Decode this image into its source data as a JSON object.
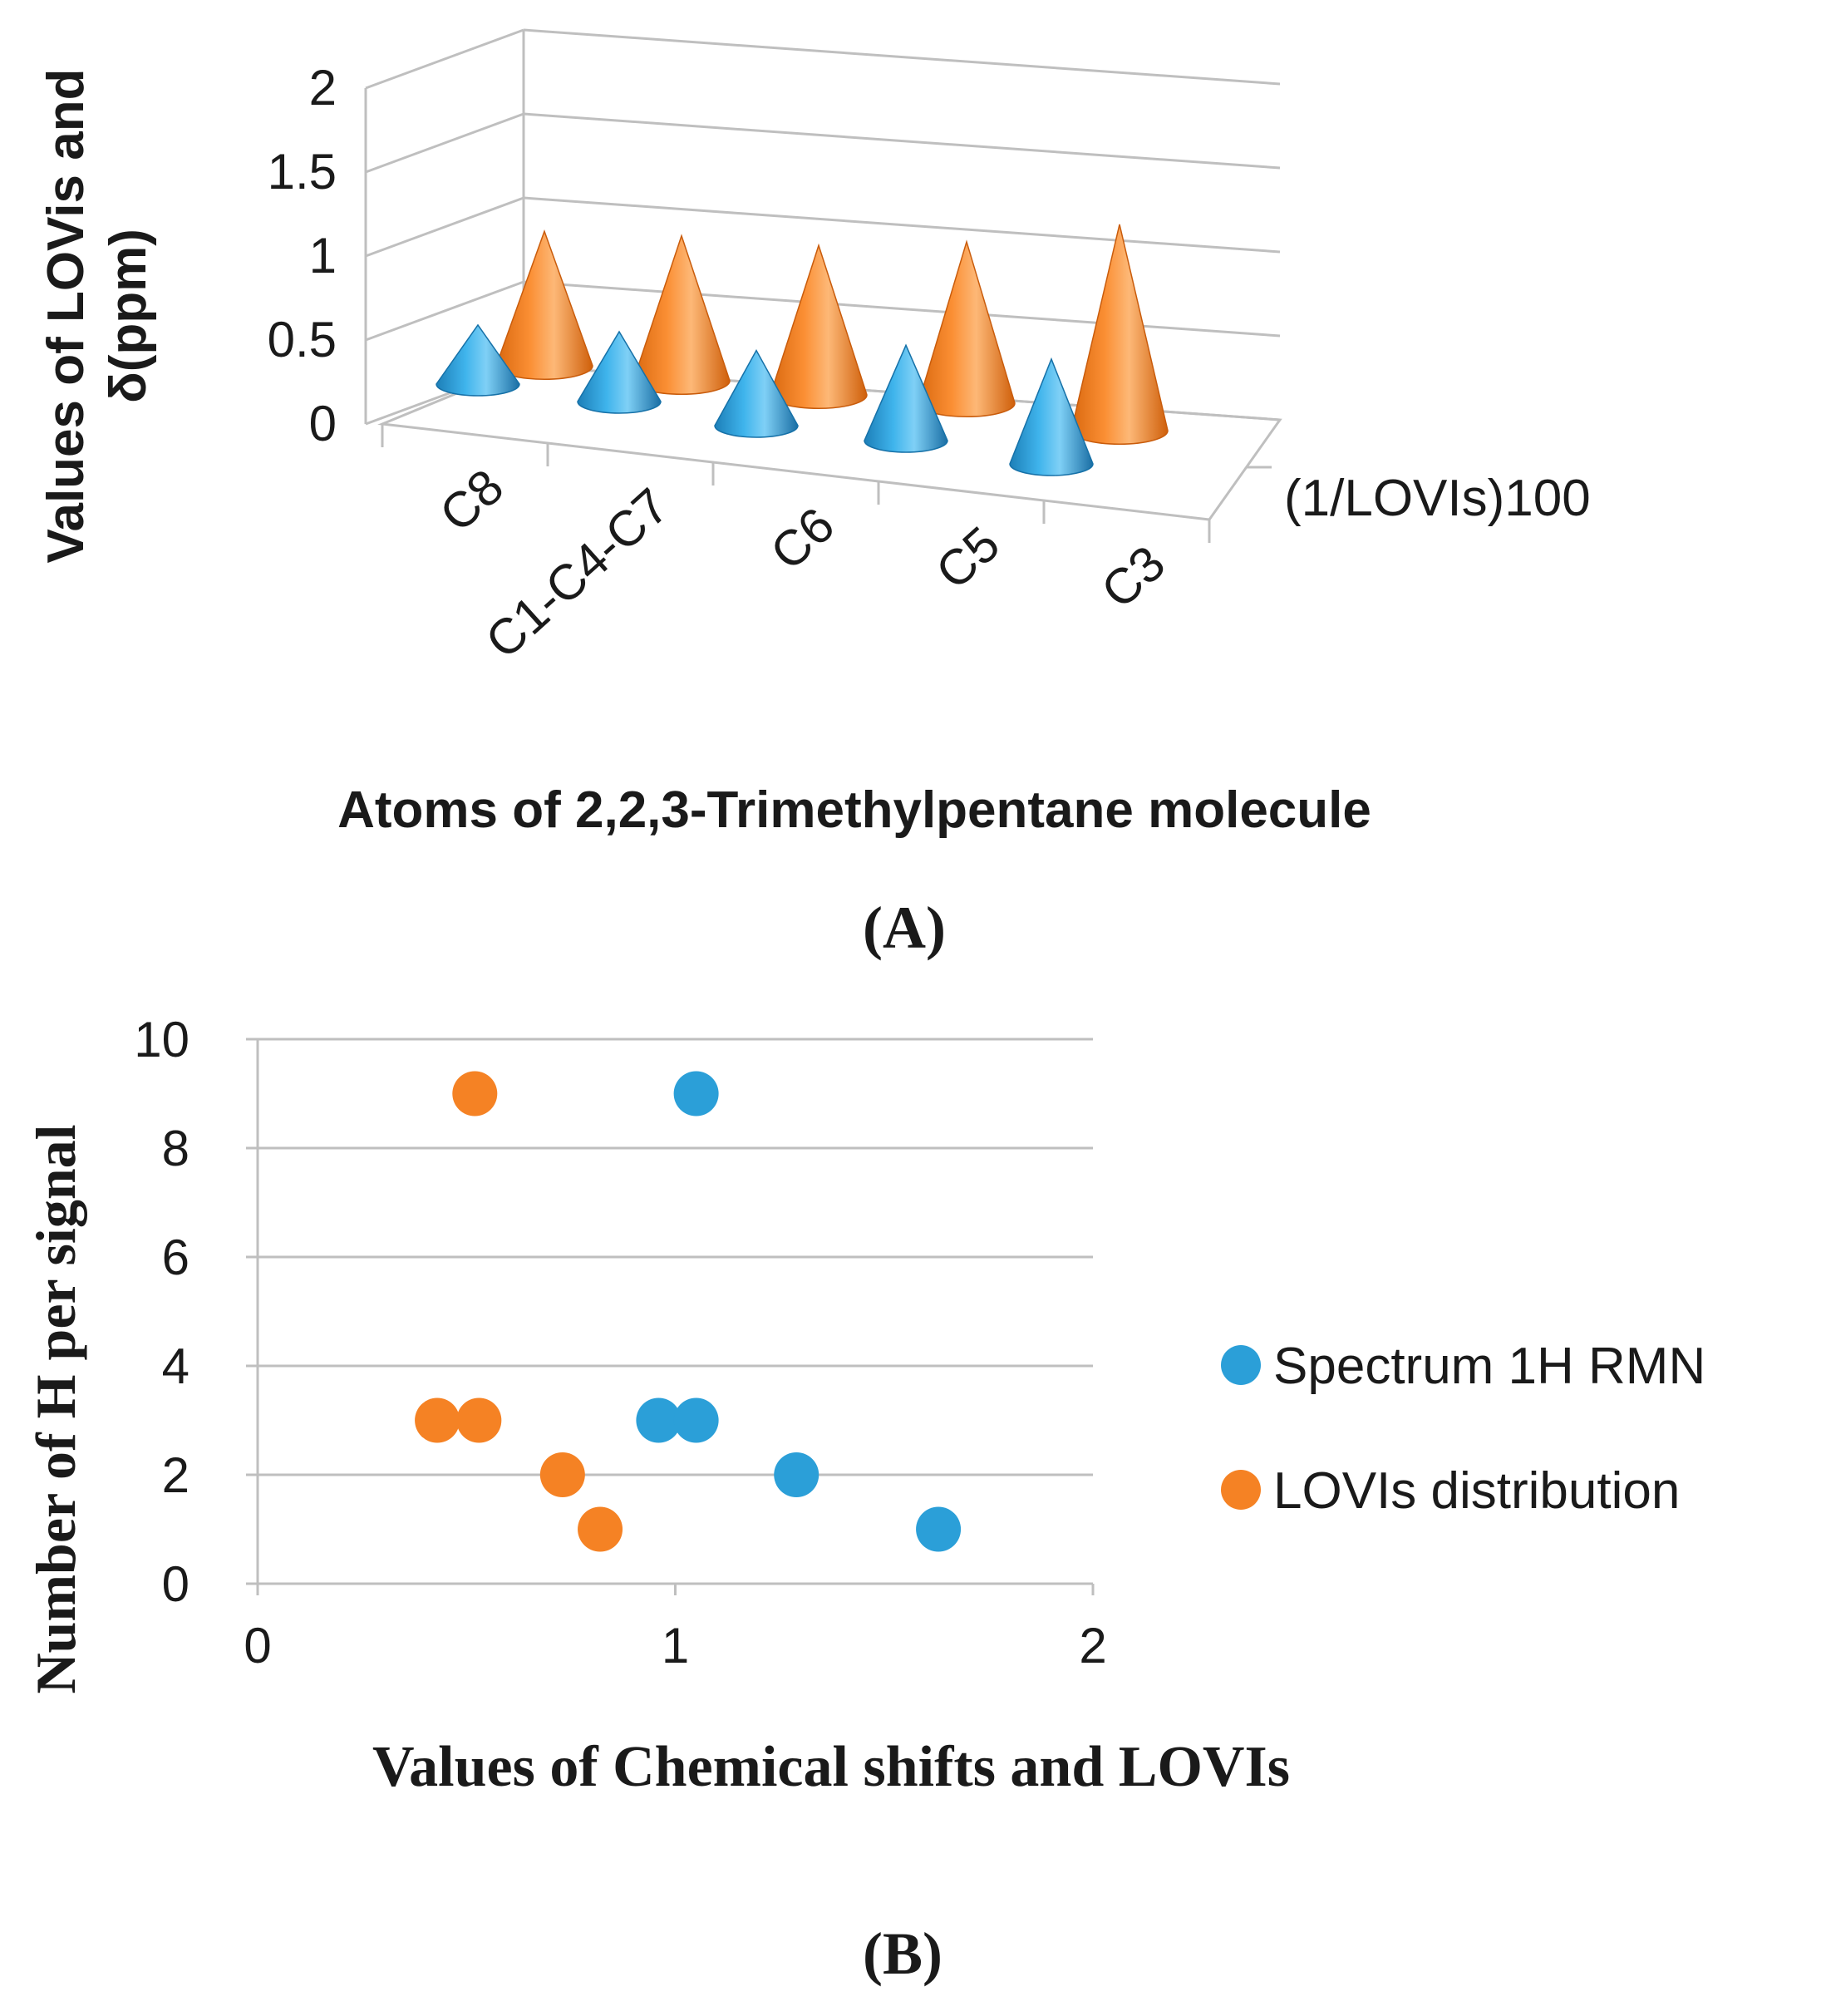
{
  "colors": {
    "blue": "#2b9fd8",
    "blue_dark": "#1671a8",
    "blue_light": "#7ccbf2",
    "orange": "#f58224",
    "orange_dark": "#c95c0c",
    "orange_light": "#fbb67a",
    "grid": "#bfbfbf",
    "text": "#1a1a1a"
  },
  "chart_data": [
    {
      "type": "bar",
      "style": "3d-cone",
      "panel_label": "(A)",
      "title": "",
      "xlabel": "Atoms of 2,2,3-Trimethylpentane molecule",
      "ylabel_lines": [
        "Values of LOVis and",
        "δ(ppm)"
      ],
      "categories": [
        "C8",
        "C1-C4-C7",
        "C6",
        "C5",
        "C3"
      ],
      "ylim": [
        0,
        2
      ],
      "yticks": [
        "0",
        "0.5",
        "1",
        "1.5",
        "2"
      ],
      "depth_label": "(1/LOVIs)100",
      "series": [
        {
          "name": "(1/LOVIs)100",
          "color": "blue",
          "values": [
            0.44,
            0.52,
            0.56,
            0.71,
            0.78
          ]
        },
        {
          "name": "δ(ppm)",
          "color": "orange",
          "values": [
            0.9,
            0.97,
            1.0,
            1.08,
            1.38
          ]
        }
      ]
    },
    {
      "type": "scatter",
      "panel_label": "(B)",
      "title": "",
      "xlabel": "Values of Chemical shifts and LOVIs",
      "ylabel": "Number of H per signal",
      "xlim": [
        0,
        2
      ],
      "ylim": [
        0,
        10
      ],
      "xticks": [
        "0",
        "1",
        "2"
      ],
      "yticks": [
        "0",
        "2",
        "4",
        "6",
        "8",
        "10"
      ],
      "legend_position": "right",
      "series": [
        {
          "name": "Spectrum 1H RMN",
          "color": "blue",
          "points": [
            [
              1.05,
              9
            ],
            [
              0.96,
              3
            ],
            [
              1.05,
              3
            ],
            [
              1.29,
              2
            ],
            [
              1.63,
              1
            ]
          ]
        },
        {
          "name": "LOVIs distribution",
          "color": "orange",
          "points": [
            [
              0.52,
              9
            ],
            [
              0.43,
              3
            ],
            [
              0.53,
              3
            ],
            [
              0.73,
              2
            ],
            [
              0.82,
              1
            ]
          ]
        }
      ]
    }
  ]
}
